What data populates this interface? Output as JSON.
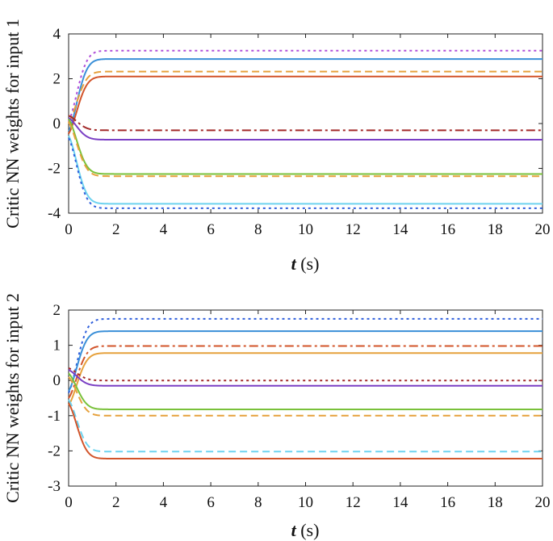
{
  "chart_data": [
    {
      "type": "line",
      "ylabel": "Critic NN weights for input 1",
      "xlabel_var": "t",
      "xlabel_unit": "(s)",
      "xlim": [
        0,
        20
      ],
      "ylim": [
        -4,
        4
      ],
      "xticks": [
        0,
        2,
        4,
        6,
        8,
        10,
        12,
        14,
        16,
        18,
        20
      ],
      "yticks": [
        -4,
        -2,
        0,
        2,
        4
      ],
      "grid": false,
      "tau": 0.45,
      "series": [
        {
          "start": 0.1,
          "final": 3.25,
          "color": "#b04fd9",
          "dash": "dotted"
        },
        {
          "start": -0.35,
          "final": 2.88,
          "color": "#3a8fd8",
          "dash": "solid"
        },
        {
          "start": 0.05,
          "final": 2.32,
          "color": "#e6a13c",
          "dash": "dashed"
        },
        {
          "start": -0.45,
          "final": 2.1,
          "color": "#d2542a",
          "dash": "solid"
        },
        {
          "start": 0.35,
          "final": -0.3,
          "color": "#a32a2a",
          "dash": "dashdot"
        },
        {
          "start": 0.25,
          "final": -0.72,
          "color": "#7a3fc4",
          "dash": "solid"
        },
        {
          "start": 0.2,
          "final": -2.25,
          "color": "#79c13a",
          "dash": "solid"
        },
        {
          "start": 0.05,
          "final": -2.35,
          "color": "#e6a13c",
          "dash": "dashed"
        },
        {
          "start": -0.55,
          "final": -3.58,
          "color": "#6dd3ef",
          "dash": "solid"
        },
        {
          "start": -0.65,
          "final": -3.78,
          "color": "#2f5fdc",
          "dash": "dotted"
        }
      ]
    },
    {
      "type": "line",
      "ylabel": "Critic NN weights for input 2",
      "xlabel_var": "t",
      "xlabel_unit": "(s)",
      "xlim": [
        0,
        20
      ],
      "ylim": [
        -3,
        2
      ],
      "xticks": [
        0,
        2,
        4,
        6,
        8,
        10,
        12,
        14,
        16,
        18,
        20
      ],
      "yticks": [
        -3,
        -2,
        -1,
        0,
        1,
        2
      ],
      "grid": false,
      "tau": 0.45,
      "series": [
        {
          "start": -0.35,
          "final": 1.75,
          "color": "#2f5fdc",
          "dash": "dotted"
        },
        {
          "start": -0.3,
          "final": 1.4,
          "color": "#3a8fd8",
          "dash": "solid"
        },
        {
          "start": -0.5,
          "final": 0.98,
          "color": "#d2542a",
          "dash": "dashdot"
        },
        {
          "start": -0.7,
          "final": 0.78,
          "color": "#e6a13c",
          "dash": "solid"
        },
        {
          "start": 0.35,
          "final": 0.0,
          "color": "#a32a2a",
          "dash": "dotted"
        },
        {
          "start": 0.3,
          "final": -0.15,
          "color": "#7a3fc4",
          "dash": "solid"
        },
        {
          "start": 0.2,
          "final": -0.82,
          "color": "#79c13a",
          "dash": "solid"
        },
        {
          "start": 0.1,
          "final": -1.0,
          "color": "#e6a13c",
          "dash": "dashed"
        },
        {
          "start": -0.55,
          "final": -2.02,
          "color": "#6dd3ef",
          "dash": "dashed"
        },
        {
          "start": -0.65,
          "final": -2.22,
          "color": "#d2542a",
          "dash": "solid"
        }
      ]
    }
  ]
}
